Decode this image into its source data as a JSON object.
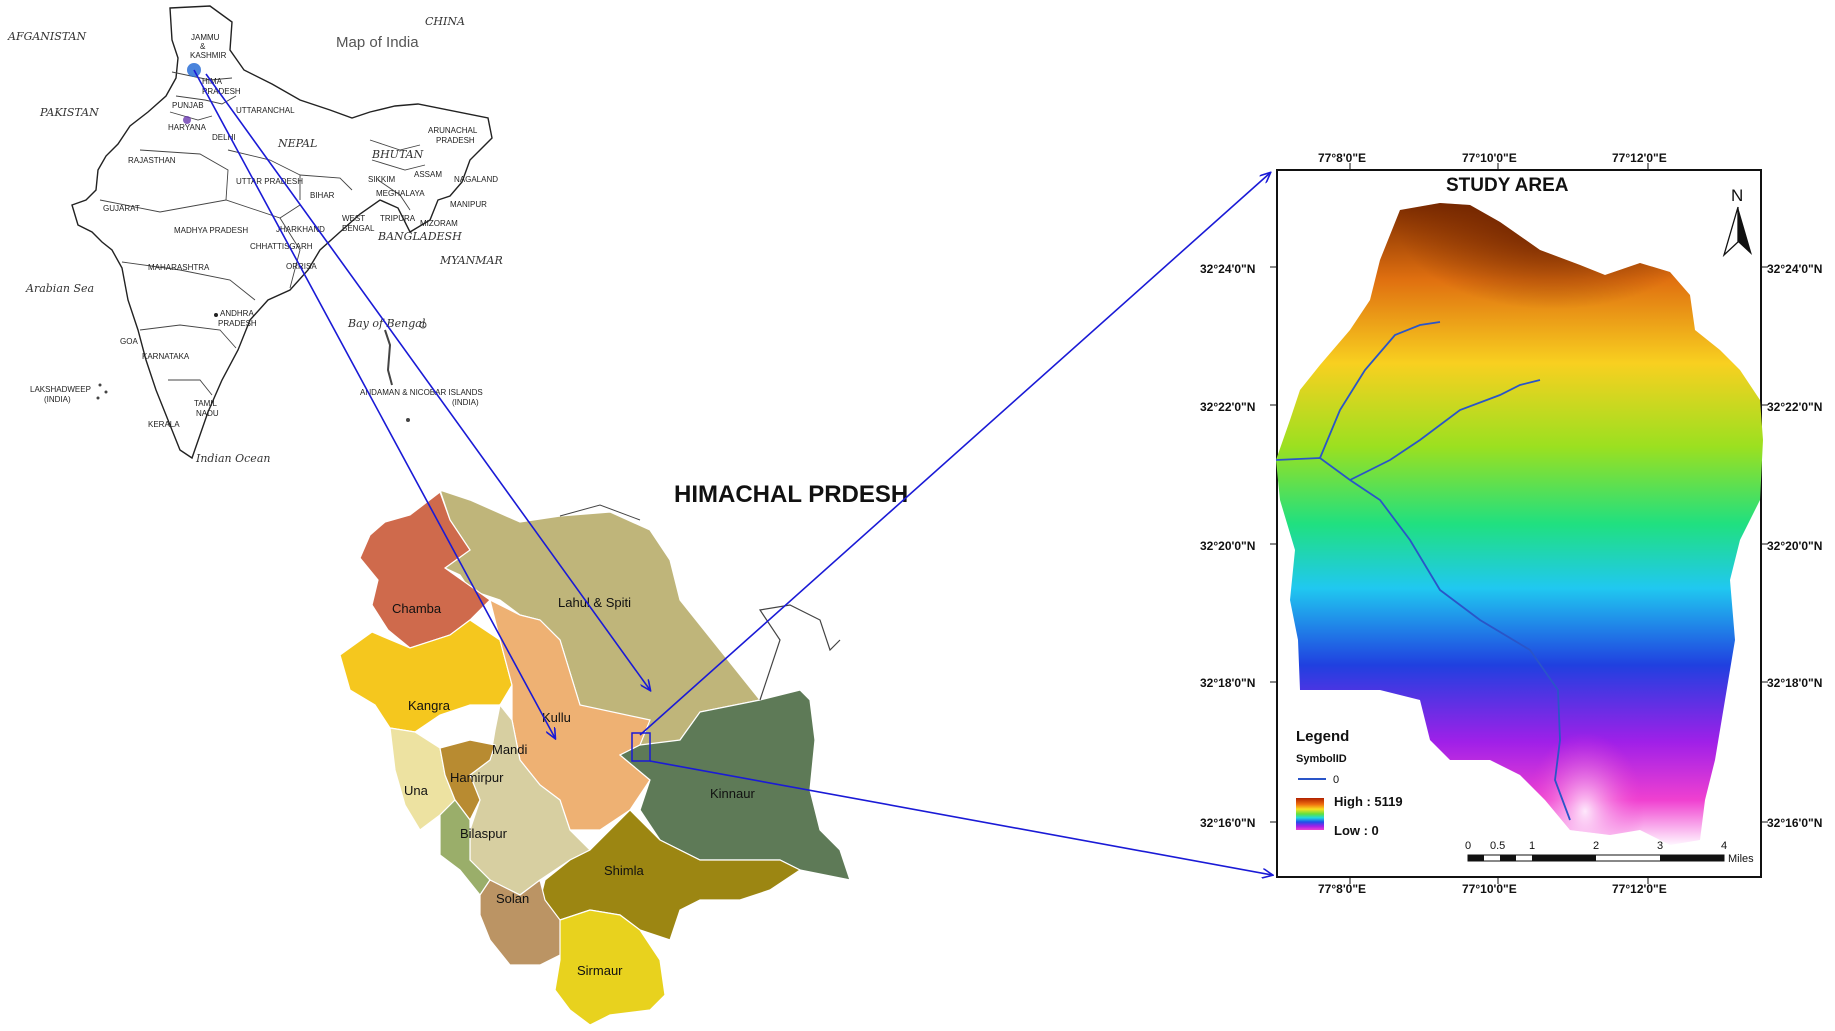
{
  "india_map": {
    "title": "Map of India",
    "countries": [
      "AFGANISTAN",
      "PAKISTAN",
      "CHINA",
      "NEPAL",
      "BHUTAN",
      "BANGLADESH",
      "MYANMAR"
    ],
    "seas": [
      "Arabian Sea",
      "Bay of Bengal",
      "Indian Ocean"
    ],
    "states": [
      "JAMMU",
      "&",
      "KASHMIR",
      "HIMA",
      "PRADESH",
      "PUNJAB",
      "HARYANA",
      "UTTARANCHAL",
      "DELHI",
      "RAJASTHAN",
      "UTTAR PRADESH",
      "SIKKIM",
      "ARUNACHAL",
      "PRADESH",
      "ASSAM",
      "NAGALAND",
      "MANIPUR",
      "MEGHALAYA",
      "BIHAR",
      "WEST",
      "BENGAL",
      "TRIPURA",
      "MIZORAM",
      "GUJARAT",
      "MADHYA PRADESH",
      "JHARKHAND",
      "CHHATTISGARH",
      "ORRISA",
      "MAHARASHTRA",
      "ANDHRA",
      "PRADESH",
      "GOA",
      "KARNATAKA",
      "TAMIL",
      "NADU",
      "KERALA",
      "LAKSHADWEEP",
      "(INDIA)",
      "ANDAMAN & NICOBAR ISLANDS",
      "(INDIA)"
    ]
  },
  "hp_map": {
    "title": "HIMACHAL PRDESH",
    "districts": [
      "Chamba",
      "Lahul & Spiti",
      "Kangra",
      "Kullu",
      "Mandi",
      "Una",
      "Hamirpur",
      "Bilaspur",
      "Kinnaur",
      "Shimla",
      "Solan",
      "Sirmaur"
    ]
  },
  "study_area": {
    "title": "STUDY AREA",
    "north_label": "N",
    "lon_labels": [
      "77°8'0\"E",
      "77°10'0\"E",
      "77°12'0\"E"
    ],
    "lat_labels": [
      "32°24'0\"N",
      "32°22'0\"N",
      "32°20'0\"N",
      "32°18'0\"N",
      "32°16'0\"N"
    ],
    "legend": {
      "title": "Legend",
      "symbol_header": "SymbolID",
      "symbol_value": "0",
      "high": "High : 5119",
      "low": "Low : 0"
    },
    "scale_labels": [
      "0",
      "0.5",
      "1",
      "2",
      "3",
      "4"
    ],
    "scale_unit": "Miles"
  },
  "colors": {
    "arrow": "#1a1ad6",
    "chamba": "#cf6a4c",
    "lahul": "#bfb57a",
    "kangra": "#f5c71e",
    "kullu": "#eeb173",
    "mandi": "#d7cfa1",
    "una": "#ede2a1",
    "hamirpur": "#b88b31",
    "bilaspur": "#9aae6a",
    "kinnaur": "#5e7a57",
    "shimla": "#9c8612",
    "solan": "#bb9464",
    "sirmaur": "#e8d21e"
  }
}
